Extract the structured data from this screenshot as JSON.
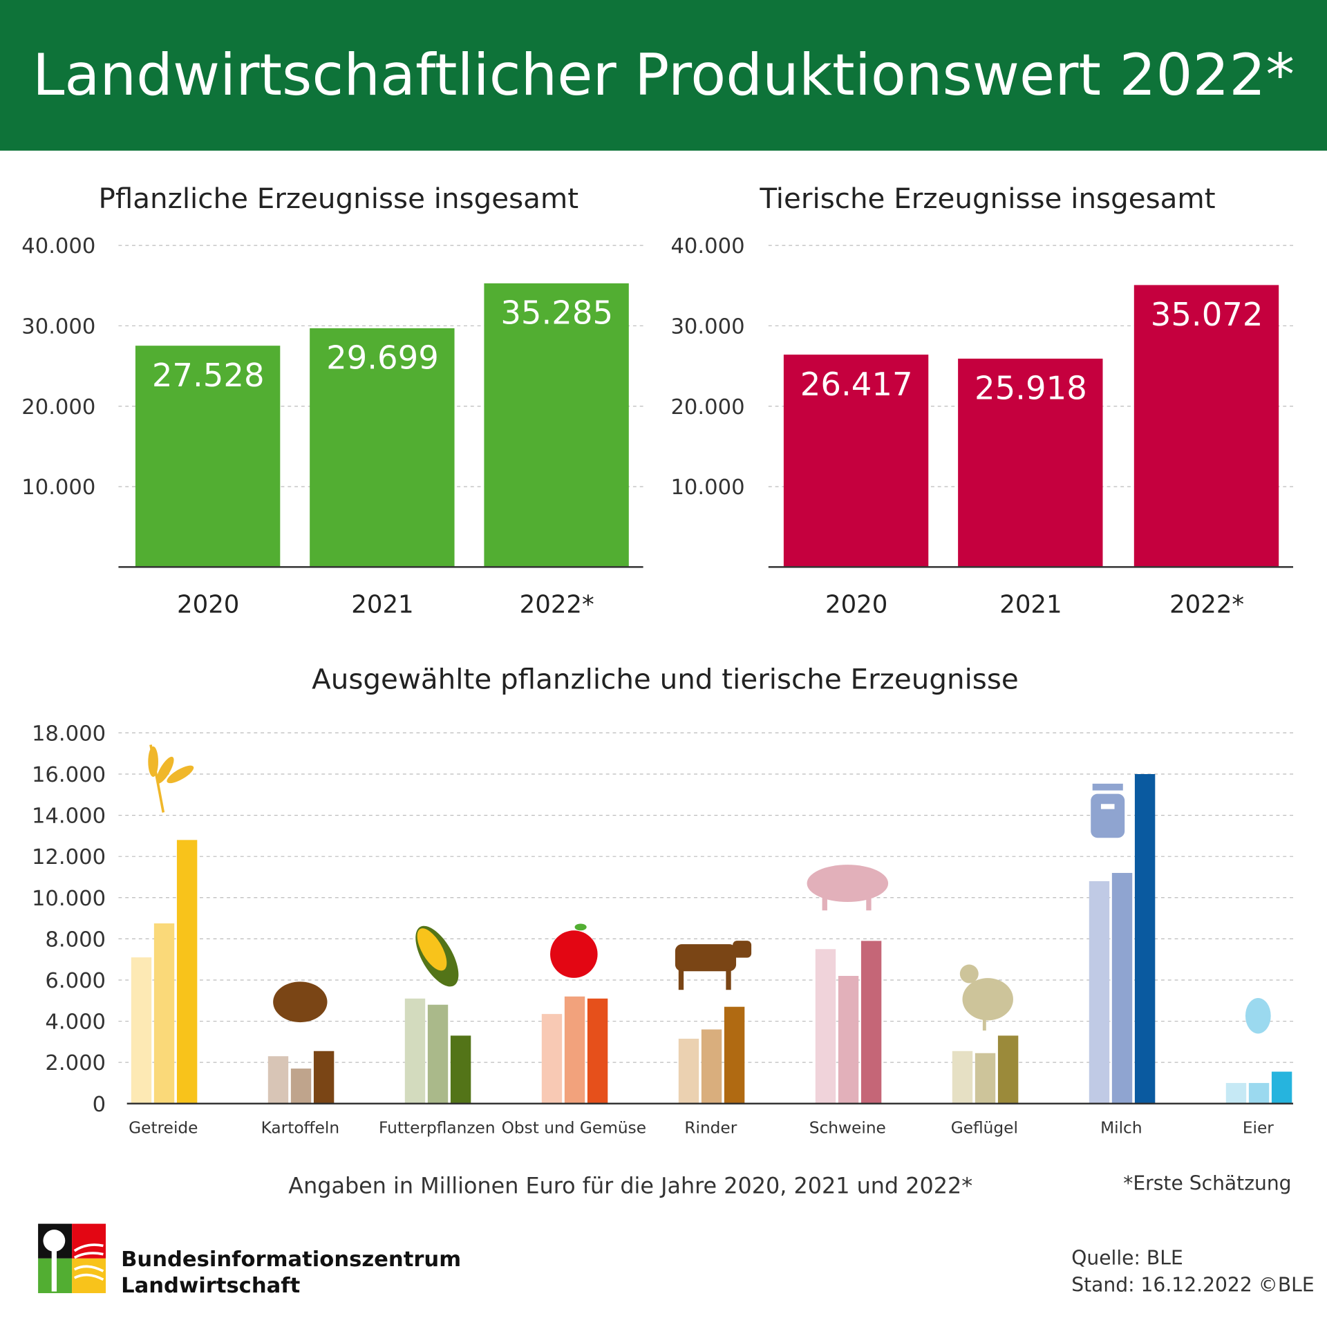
{
  "header": {
    "title": "Landwirtschaftlicher Produktionswert 2022*",
    "bg": "#0e7339"
  },
  "chart_data": [
    {
      "type": "bar",
      "title": "Pflanzliche Erzeugnisse insgesamt",
      "categories": [
        "2020",
        "2021",
        "2022*"
      ],
      "values": [
        27528,
        29699,
        35285
      ],
      "value_labels": [
        "27.528",
        "29.699",
        "35.285"
      ],
      "yticks": [
        "10.000",
        "20.000",
        "30.000",
        "40.000"
      ],
      "ylim": [
        0,
        40000
      ],
      "color": "#52ae32",
      "grid": true
    },
    {
      "type": "bar",
      "title": "Tierische Erzeugnisse insgesamt",
      "categories": [
        "2020",
        "2021",
        "2022*"
      ],
      "values": [
        26417,
        25918,
        35072
      ],
      "value_labels": [
        "26.417",
        "25.918",
        "35.072"
      ],
      "yticks": [
        "10.000",
        "20.000",
        "30.000",
        "40.000"
      ],
      "ylim": [
        0,
        40000
      ],
      "color": "#c5003e",
      "grid": true
    },
    {
      "type": "bar",
      "title": "Ausgewählte pflanzliche und tierische Erzeugnisse",
      "categories": [
        "Getreide",
        "Kartoffeln",
        "Futterpflanzen",
        "Obst und Gemüse",
        "Rinder",
        "Schweine",
        "Geflügel",
        "Milch",
        "Eier"
      ],
      "series_names": [
        "2020",
        "2021",
        "2022*"
      ],
      "values": [
        [
          7100,
          8750,
          12800
        ],
        [
          2300,
          1700,
          2550
        ],
        [
          5100,
          4800,
          3300
        ],
        [
          4350,
          5200,
          5100
        ],
        [
          3150,
          3600,
          4700
        ],
        [
          7500,
          6200,
          7900
        ],
        [
          2550,
          2450,
          3300
        ],
        [
          10800,
          11200,
          16000
        ],
        [
          1000,
          1000,
          1550
        ]
      ],
      "colors": [
        [
          "#fde9b4",
          "#fad979",
          "#f8c31b"
        ],
        [
          "#d8c5b6",
          "#bfa48c",
          "#7a4515"
        ],
        [
          "#d3dbbe",
          "#aab98a",
          "#537418"
        ],
        [
          "#f8c9b4",
          "#f2a27c",
          "#e6501b"
        ],
        [
          "#ebd1b1",
          "#d9ae7d",
          "#b06a12"
        ],
        [
          "#f0d3da",
          "#e2b0ba",
          "#c56677"
        ],
        [
          "#e6e0c4",
          "#cdc49a",
          "#9b8a3a"
        ],
        [
          "#c0cae5",
          "#8fa4d0",
          "#0a5aa0"
        ],
        [
          "#c6e9f5",
          "#9bd9ef",
          "#26b4de"
        ]
      ],
      "icons": [
        "wheat-icon",
        "potato-icon",
        "corn-icon",
        "apple-icon",
        "cow-icon",
        "pig-icon",
        "chicken-icon",
        "milk-can-icon",
        "egg-icon"
      ],
      "yticks": [
        "0",
        "2.000",
        "4.000",
        "6.000",
        "8.000",
        "10.000",
        "12.000",
        "14.000",
        "16.000",
        "18.000"
      ],
      "ylim": [
        0,
        18000
      ],
      "grid": true
    }
  ],
  "footer": {
    "note": "Angaben in Millionen Euro für die Jahre 2020, 2021 und 2022*",
    "estimate": "*Erste Schätzung",
    "logo_line1": "Bundesinformationszentrum",
    "logo_line2": "Landwirtschaft",
    "source": "Quelle: BLE",
    "date": "Stand: 16.12.2022 ©BLE"
  }
}
